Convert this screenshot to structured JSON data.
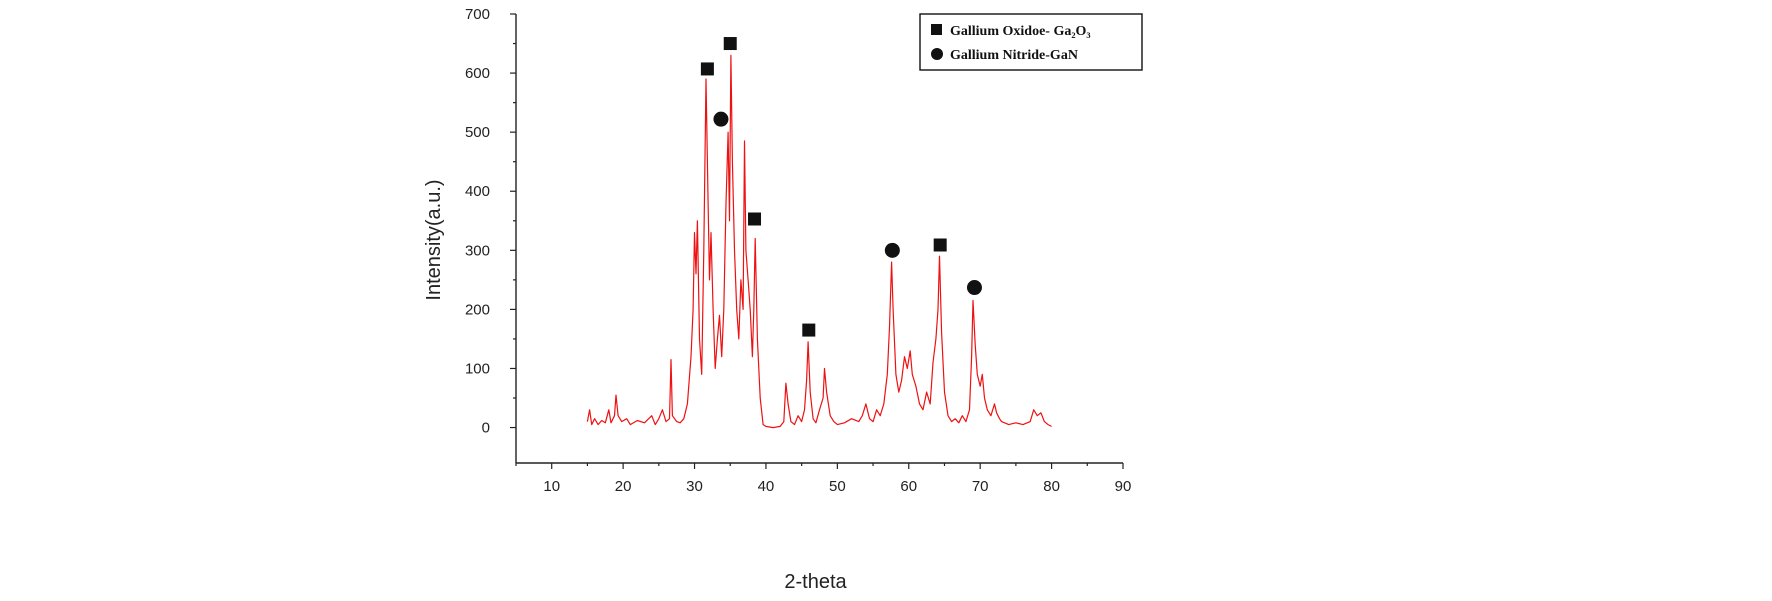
{
  "chart_data": {
    "type": "line",
    "title": "",
    "xlabel": "2-theta",
    "ylabel": "Intensity(a.u.)",
    "xlim": [
      5,
      90
    ],
    "ylim": [
      -60,
      700
    ],
    "xticks": [
      10,
      20,
      30,
      40,
      50,
      60,
      70,
      80,
      90
    ],
    "yticks": [
      0,
      100,
      200,
      300,
      400,
      500,
      600,
      700
    ],
    "grid": false,
    "line_color": "#ee1111",
    "series": [
      {
        "points": [
          [
            15.0,
            10
          ],
          [
            15.3,
            30
          ],
          [
            15.6,
            5
          ],
          [
            16.0,
            15
          ],
          [
            16.5,
            5
          ],
          [
            17.0,
            12
          ],
          [
            17.5,
            8
          ],
          [
            18.0,
            30
          ],
          [
            18.3,
            8
          ],
          [
            18.8,
            20
          ],
          [
            19.0,
            55
          ],
          [
            19.3,
            20
          ],
          [
            19.8,
            10
          ],
          [
            20.5,
            15
          ],
          [
            21.0,
            5
          ],
          [
            22.0,
            12
          ],
          [
            23.0,
            8
          ],
          [
            24.0,
            20
          ],
          [
            24.5,
            5
          ],
          [
            25.0,
            15
          ],
          [
            25.5,
            30
          ],
          [
            26.0,
            10
          ],
          [
            26.5,
            15
          ],
          [
            26.7,
            115
          ],
          [
            26.9,
            20
          ],
          [
            27.5,
            10
          ],
          [
            28.0,
            8
          ],
          [
            28.5,
            15
          ],
          [
            29.0,
            40
          ],
          [
            29.5,
            120
          ],
          [
            29.8,
            200
          ],
          [
            30.0,
            330
          ],
          [
            30.2,
            260
          ],
          [
            30.4,
            350
          ],
          [
            30.7,
            150
          ],
          [
            31.0,
            90
          ],
          [
            31.3,
            300
          ],
          [
            31.6,
            590
          ],
          [
            31.9,
            380
          ],
          [
            32.1,
            250
          ],
          [
            32.3,
            330
          ],
          [
            32.6,
            200
          ],
          [
            32.9,
            100
          ],
          [
            33.2,
            150
          ],
          [
            33.5,
            190
          ],
          [
            33.8,
            120
          ],
          [
            34.1,
            200
          ],
          [
            34.4,
            380
          ],
          [
            34.7,
            500
          ],
          [
            34.9,
            350
          ],
          [
            35.1,
            630
          ],
          [
            35.3,
            450
          ],
          [
            35.6,
            300
          ],
          [
            35.9,
            200
          ],
          [
            36.2,
            150
          ],
          [
            36.5,
            250
          ],
          [
            36.8,
            200
          ],
          [
            37.0,
            485
          ],
          [
            37.2,
            300
          ],
          [
            37.5,
            250
          ],
          [
            37.8,
            200
          ],
          [
            38.1,
            120
          ],
          [
            38.3,
            200
          ],
          [
            38.5,
            320
          ],
          [
            38.8,
            150
          ],
          [
            39.2,
            50
          ],
          [
            39.6,
            5
          ],
          [
            40.0,
            2
          ],
          [
            41.0,
            0
          ],
          [
            42.0,
            2
          ],
          [
            42.5,
            10
          ],
          [
            42.8,
            75
          ],
          [
            43.1,
            40
          ],
          [
            43.5,
            10
          ],
          [
            44.0,
            5
          ],
          [
            44.5,
            20
          ],
          [
            45.0,
            10
          ],
          [
            45.4,
            30
          ],
          [
            45.7,
            80
          ],
          [
            45.9,
            145
          ],
          [
            46.2,
            60
          ],
          [
            46.6,
            15
          ],
          [
            47.0,
            8
          ],
          [
            47.5,
            30
          ],
          [
            48.0,
            50
          ],
          [
            48.2,
            100
          ],
          [
            48.5,
            60
          ],
          [
            49.0,
            20
          ],
          [
            49.5,
            10
          ],
          [
            50.0,
            5
          ],
          [
            51.0,
            8
          ],
          [
            52.0,
            15
          ],
          [
            53.0,
            10
          ],
          [
            53.5,
            20
          ],
          [
            54.0,
            40
          ],
          [
            54.5,
            15
          ],
          [
            55.0,
            10
          ],
          [
            55.5,
            30
          ],
          [
            56.0,
            20
          ],
          [
            56.5,
            40
          ],
          [
            57.0,
            90
          ],
          [
            57.3,
            170
          ],
          [
            57.6,
            280
          ],
          [
            57.8,
            200
          ],
          [
            58.2,
            90
          ],
          [
            58.6,
            60
          ],
          [
            59.0,
            80
          ],
          [
            59.4,
            120
          ],
          [
            59.8,
            100
          ],
          [
            60.2,
            130
          ],
          [
            60.5,
            90
          ],
          [
            61.0,
            70
          ],
          [
            61.5,
            40
          ],
          [
            62.0,
            30
          ],
          [
            62.5,
            60
          ],
          [
            63.0,
            40
          ],
          [
            63.4,
            110
          ],
          [
            63.8,
            150
          ],
          [
            64.1,
            200
          ],
          [
            64.3,
            290
          ],
          [
            64.6,
            160
          ],
          [
            65.0,
            60
          ],
          [
            65.5,
            20
          ],
          [
            66.0,
            10
          ],
          [
            66.5,
            15
          ],
          [
            67.0,
            8
          ],
          [
            67.5,
            20
          ],
          [
            68.0,
            10
          ],
          [
            68.5,
            30
          ],
          [
            68.8,
            120
          ],
          [
            69.0,
            215
          ],
          [
            69.3,
            140
          ],
          [
            69.6,
            90
          ],
          [
            70.0,
            70
          ],
          [
            70.3,
            90
          ],
          [
            70.6,
            50
          ],
          [
            71.0,
            30
          ],
          [
            71.5,
            20
          ],
          [
            72.0,
            40
          ],
          [
            72.3,
            25
          ],
          [
            72.7,
            15
          ],
          [
            73.0,
            10
          ],
          [
            74.0,
            5
          ],
          [
            75.0,
            8
          ],
          [
            76.0,
            5
          ],
          [
            77.0,
            10
          ],
          [
            77.5,
            30
          ],
          [
            78.0,
            20
          ],
          [
            78.5,
            25
          ],
          [
            79.0,
            10
          ],
          [
            79.5,
            5
          ],
          [
            80.0,
            2
          ]
        ]
      }
    ],
    "annotations": [
      {
        "marker": "square",
        "x": 31.8,
        "y": 607
      },
      {
        "marker": "square",
        "x": 35.0,
        "y": 650
      },
      {
        "marker": "circle",
        "x": 33.7,
        "y": 522
      },
      {
        "marker": "square",
        "x": 38.4,
        "y": 353
      },
      {
        "marker": "square",
        "x": 46.0,
        "y": 165
      },
      {
        "marker": "circle",
        "x": 57.7,
        "y": 300
      },
      {
        "marker": "square",
        "x": 64.4,
        "y": 309
      },
      {
        "marker": "circle",
        "x": 69.2,
        "y": 237
      }
    ],
    "legend": {
      "position": "top-right",
      "entries": [
        {
          "marker": "square",
          "label": "Gallium Oxidoe- Ga₂O₃"
        },
        {
          "marker": "circle",
          "label": "Gallium Nitride-GaN"
        }
      ]
    }
  }
}
